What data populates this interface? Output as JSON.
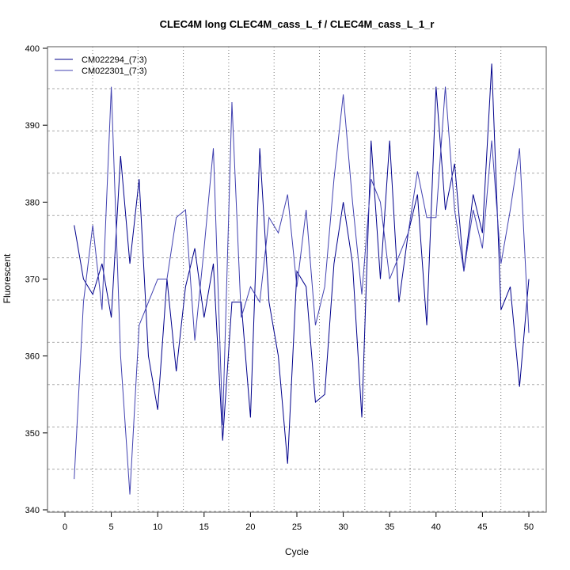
{
  "chart_data": {
    "type": "line",
    "title": "CLEC4M long CLEC4M_cass_L_f / CLEC4M_cass_L_1_r",
    "xlabel": "Cycle",
    "ylabel": "Fluorescent",
    "xlim": [
      0,
      50
    ],
    "ylim": [
      340,
      400
    ],
    "xticks": [
      0,
      5,
      10,
      15,
      20,
      25,
      30,
      35,
      40,
      45,
      50
    ],
    "yticks": [
      340,
      350,
      360,
      370,
      380,
      390,
      400
    ],
    "grid": true,
    "legend_position": "top-left",
    "x": [
      1,
      2,
      3,
      4,
      5,
      6,
      7,
      8,
      9,
      10,
      11,
      12,
      13,
      14,
      15,
      16,
      17,
      18,
      19,
      20,
      21,
      22,
      23,
      24,
      25,
      26,
      27,
      28,
      29,
      30,
      31,
      32,
      33,
      34,
      35,
      36,
      37,
      38,
      39,
      40,
      41,
      42,
      43,
      44,
      45,
      46,
      47,
      48,
      49,
      50
    ],
    "series": [
      {
        "name": "CM022294_(7:3)",
        "color": "#00008B",
        "values": [
          377,
          370,
          368,
          372,
          365,
          386,
          372,
          383,
          360,
          353,
          370,
          358,
          369,
          374,
          365,
          372,
          349,
          367,
          367,
          352,
          387,
          367,
          360,
          346,
          371,
          369,
          354,
          355,
          372,
          380,
          372,
          352,
          388,
          370,
          388,
          367,
          376,
          381,
          364,
          395,
          379,
          385,
          371,
          381,
          376,
          398,
          366,
          369,
          356,
          370
        ]
      },
      {
        "name": "CM022301_(7:3)",
        "color": "#4040B0",
        "values": [
          344,
          367,
          377,
          366,
          395,
          360,
          342,
          364,
          367,
          370,
          370,
          378,
          379,
          362,
          374,
          387,
          351,
          393,
          365,
          369,
          367,
          378,
          376,
          381,
          369,
          379,
          364,
          369,
          383,
          394,
          380,
          368,
          383,
          380,
          370,
          373,
          376,
          384,
          378,
          378,
          395,
          379,
          371,
          379,
          374,
          388,
          372,
          379,
          387,
          363
        ]
      }
    ]
  }
}
